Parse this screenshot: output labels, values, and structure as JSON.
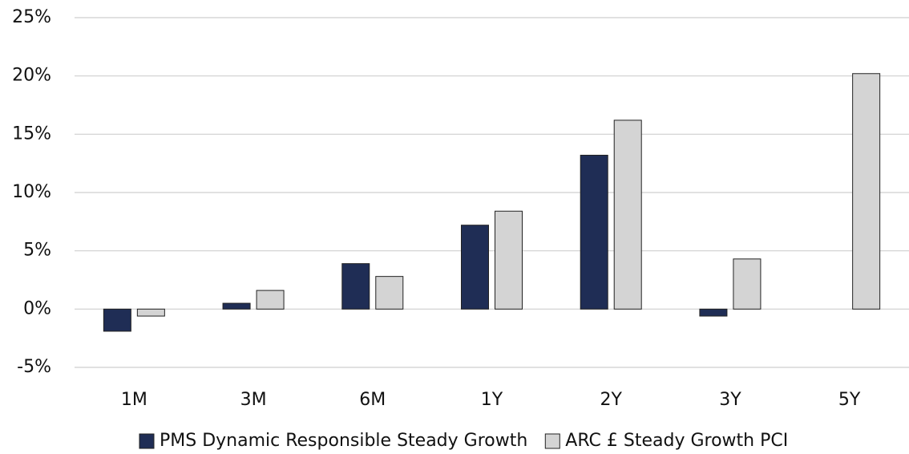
{
  "chart_data": {
    "type": "bar",
    "categories": [
      "1M",
      "3M",
      "6M",
      "1Y",
      "2Y",
      "3Y",
      "5Y"
    ],
    "series": [
      {
        "name": "PMS Dynamic Responsible Steady Growth",
        "color": "#1f2d55",
        "values": [
          -1.9,
          0.5,
          3.9,
          7.2,
          13.2,
          -0.6,
          null
        ]
      },
      {
        "name": "ARC £ Steady Growth PCI",
        "color": "#d4d4d4",
        "values": [
          -0.6,
          1.6,
          2.8,
          8.4,
          16.2,
          4.3,
          20.2
        ]
      }
    ],
    "ylim": [
      -5,
      25
    ],
    "yticks": [
      {
        "value": -5,
        "label": "-5%"
      },
      {
        "value": 0,
        "label": "0%"
      },
      {
        "value": 5,
        "label": "5%"
      },
      {
        "value": 10,
        "label": "10%"
      },
      {
        "value": 15,
        "label": "15%"
      },
      {
        "value": 20,
        "label": "20%"
      },
      {
        "value": 25,
        "label": "25%"
      }
    ],
    "grid": true,
    "legend": "bottom"
  }
}
